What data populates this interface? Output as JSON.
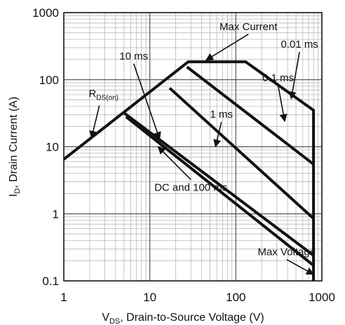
{
  "chart_data": {
    "type": "line",
    "title": "",
    "xlabel": {
      "main": "V",
      "sub": "DS",
      "rest": ", Drain-to-Source Voltage (V)"
    },
    "ylabel": {
      "main": "I",
      "sub": "D",
      "rest": ", Drain Current (A)"
    },
    "xscale": "log",
    "yscale": "log",
    "xlim": [
      1,
      1000
    ],
    "ylim": [
      0.1,
      1000
    ],
    "grid": true,
    "x_ticks": [
      1,
      10,
      100,
      1000
    ],
    "x_tick_labels": [
      "1",
      "10",
      "100",
      "1000"
    ],
    "y_ticks": [
      0.1,
      1,
      10,
      100,
      1000
    ],
    "y_tick_labels": [
      "0.1",
      "1",
      "10",
      "100",
      "1000"
    ],
    "series": [
      {
        "name": "0.01 ms",
        "x": [
          1,
          28,
          130,
          800,
          800
        ],
        "y": [
          6.5,
          185,
          185,
          35,
          0.1
        ]
      },
      {
        "name": "0.1 ms",
        "x": [
          27,
          800
        ],
        "y": [
          155,
          5.5
        ]
      },
      {
        "name": "1 ms",
        "x": [
          17,
          800
        ],
        "y": [
          75,
          0.85
        ]
      },
      {
        "name": "10 ms",
        "x": [
          5,
          800
        ],
        "y": [
          32,
          0.24
        ]
      },
      {
        "name": "DC and 100 ms",
        "x": [
          5.3,
          800
        ],
        "y": [
          28,
          0.17
        ]
      }
    ],
    "annotations": [
      {
        "text": "Max Current",
        "text_x": 140,
        "text_y": 550,
        "arrow_to": [
          45,
          195
        ],
        "anchor": "middle"
      },
      {
        "text": "0.01 ms",
        "text_x": 550,
        "text_y": 300,
        "arrow_to": [
          440,
          52
        ],
        "anchor": "middle"
      },
      {
        "text": "0.1 ms",
        "text_x": 310,
        "text_y": 95,
        "arrow_to": [
          370,
          24
        ],
        "anchor": "middle"
      },
      {
        "text": "1 ms",
        "text_x": 68,
        "text_y": 27,
        "arrow_to": [
          58,
          10
        ],
        "anchor": "middle"
      },
      {
        "text": "10 ms",
        "text_x": 6.5,
        "text_y": 200,
        "arrow_to": [
          13,
          13
        ],
        "anchor": "middle"
      },
      {
        "text": "DC and 100 ms",
        "text_x": 30,
        "text_y": 2.2,
        "arrow_to": [
          12.5,
          10
        ],
        "anchor": "middle"
      },
      {
        "text": "Max Voltage",
        "text_x": 390,
        "text_y": 0.24,
        "arrow_to": [
          800,
          0.125
        ],
        "anchor": "middle"
      }
    ],
    "rds_label": {
      "main": "R",
      "sub": "DS(on)",
      "text_x": 2.9,
      "text_y": 55,
      "arrow_to": [
        2.1,
        13.5
      ]
    }
  }
}
